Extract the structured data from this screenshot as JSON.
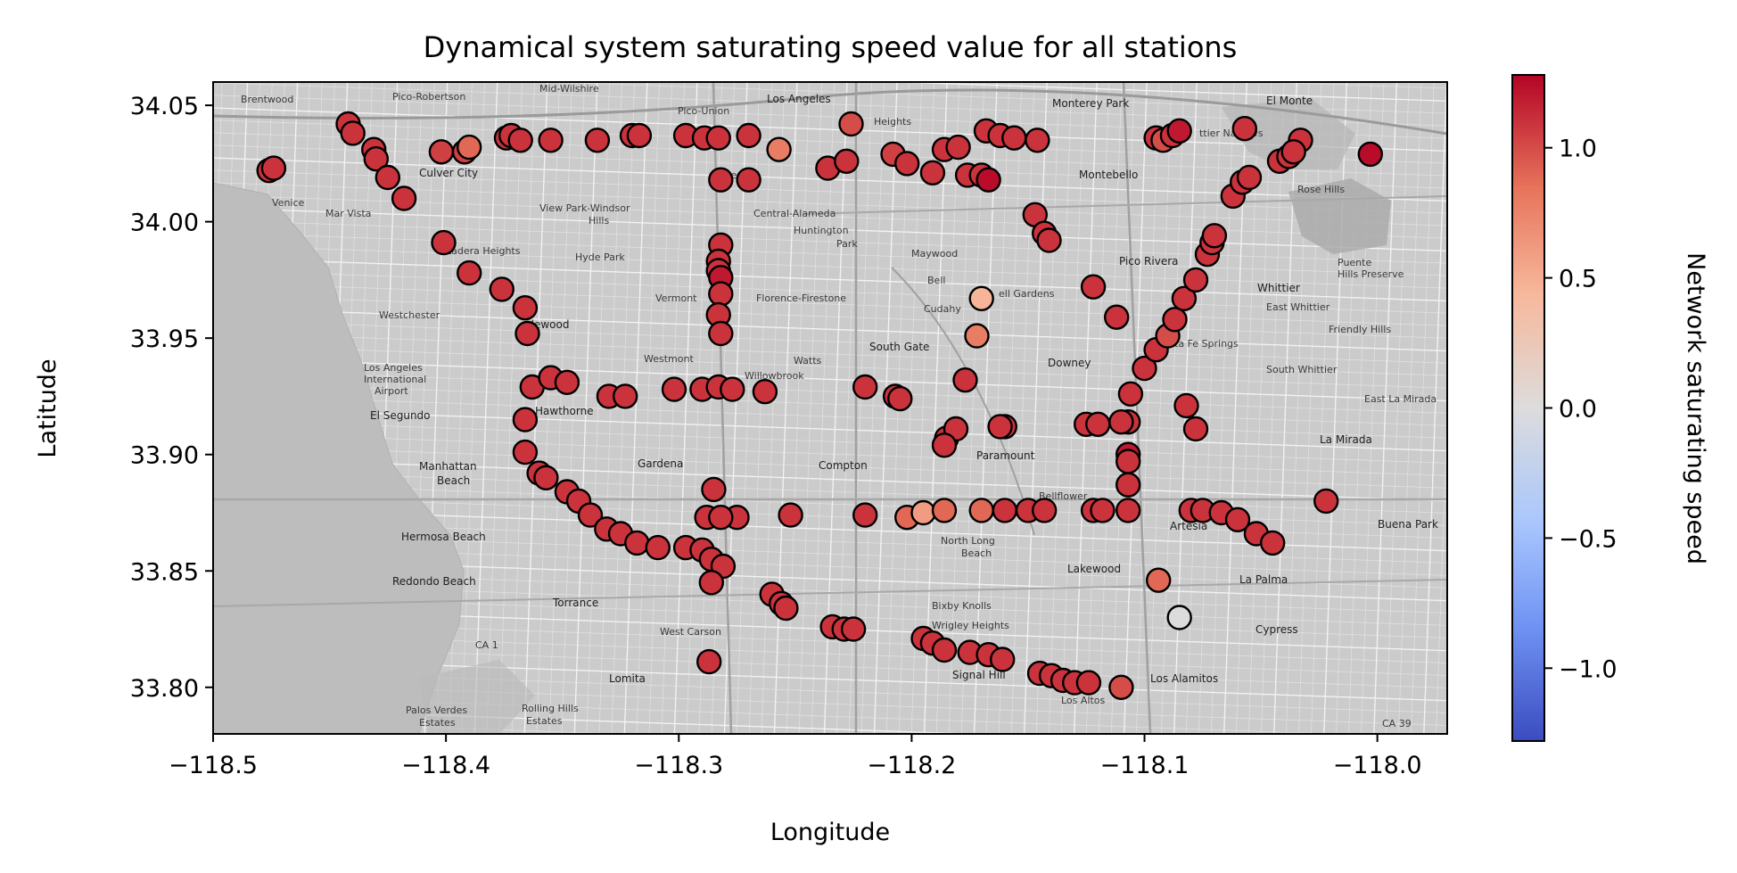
{
  "chart_data": {
    "type": "scatter",
    "title": "Dynamical system saturating speed value for all stations",
    "xlabel": "Longitude",
    "ylabel": "Latitude",
    "xlim": [
      -118.5,
      -117.97
    ],
    "ylim": [
      33.78,
      34.06
    ],
    "xticks": [
      -118.5,
      -118.4,
      -118.3,
      -118.2,
      -118.1,
      -118.0
    ],
    "xtick_labels": [
      "−118.5",
      "−118.4",
      "−118.3",
      "−118.2",
      "−118.1",
      "−118.0"
    ],
    "yticks": [
      33.8,
      33.85,
      33.9,
      33.95,
      34.0,
      34.05
    ],
    "ytick_labels": [
      "33.80",
      "33.85",
      "33.90",
      "33.95",
      "34.00",
      "34.05"
    ],
    "colorbar": {
      "label": "Network saturating speed",
      "colormap": "coolwarm",
      "vmin": -1.28,
      "vmax": 1.28,
      "ticks": [
        -1.0,
        -0.5,
        0.0,
        0.5,
        1.0
      ],
      "tick_labels": [
        "−1.0",
        "−0.5",
        "0.0",
        "0.5",
        "1.0"
      ],
      "colors": [
        "#3b4cc0",
        "#6f92f3",
        "#aac7fd",
        "#dddcdc",
        "#f7b89c",
        "#e7745b",
        "#b40426"
      ]
    },
    "background": "grayscale street map (Los Angeles area)",
    "points": [
      [
        -118.476,
        34.022,
        1.1
      ],
      [
        -118.474,
        34.023,
        1.1
      ],
      [
        -118.442,
        34.042,
        1.1
      ],
      [
        -118.44,
        34.038,
        1.1
      ],
      [
        -118.431,
        34.031,
        1.1
      ],
      [
        -118.43,
        34.027,
        1.1
      ],
      [
        -118.425,
        34.019,
        1.1
      ],
      [
        -118.418,
        34.01,
        1.1
      ],
      [
        -118.402,
        34.03,
        1.05
      ],
      [
        -118.392,
        34.03,
        1.05
      ],
      [
        -118.39,
        34.032,
        0.9
      ],
      [
        -118.374,
        34.036,
        1.1
      ],
      [
        -118.372,
        34.037,
        1.1
      ],
      [
        -118.368,
        34.035,
        1.1
      ],
      [
        -118.355,
        34.035,
        1.1
      ],
      [
        -118.335,
        34.035,
        1.1
      ],
      [
        -118.32,
        34.037,
        1.1
      ],
      [
        -118.317,
        34.037,
        1.1
      ],
      [
        -118.297,
        34.037,
        1.1
      ],
      [
        -118.289,
        34.036,
        1.1
      ],
      [
        -118.283,
        34.036,
        1.1
      ],
      [
        -118.27,
        34.037,
        1.1
      ],
      [
        -118.257,
        34.031,
        0.8
      ],
      [
        -118.226,
        34.042,
        1.0
      ],
      [
        -118.236,
        34.023,
        1.1
      ],
      [
        -118.228,
        34.026,
        1.1
      ],
      [
        -118.208,
        34.029,
        1.05
      ],
      [
        -118.202,
        34.025,
        1.1
      ],
      [
        -118.191,
        34.021,
        1.1
      ],
      [
        -118.186,
        34.031,
        1.1
      ],
      [
        -118.18,
        34.032,
        1.1
      ],
      [
        -118.176,
        34.02,
        1.1
      ],
      [
        -118.17,
        34.02,
        1.1
      ],
      [
        -118.167,
        34.018,
        1.25
      ],
      [
        -118.168,
        34.039,
        1.1
      ],
      [
        -118.162,
        34.037,
        1.1
      ],
      [
        -118.156,
        34.036,
        1.1
      ],
      [
        -118.146,
        34.035,
        1.1
      ],
      [
        -118.147,
        34.003,
        1.1
      ],
      [
        -118.143,
        33.995,
        1.1
      ],
      [
        -118.141,
        33.992,
        1.1
      ],
      [
        -118.095,
        34.036,
        1.1
      ],
      [
        -118.092,
        34.035,
        1.0
      ],
      [
        -118.088,
        34.037,
        1.1
      ],
      [
        -118.085,
        34.039,
        1.2
      ],
      [
        -118.057,
        34.04,
        1.1
      ],
      [
        -118.062,
        34.011,
        1.1
      ],
      [
        -118.058,
        34.017,
        1.1
      ],
      [
        -118.055,
        34.019,
        1.1
      ],
      [
        -118.042,
        34.026,
        1.1
      ],
      [
        -118.038,
        34.028,
        1.1
      ],
      [
        -118.033,
        34.035,
        1.1
      ],
      [
        -118.036,
        34.03,
        1.1
      ],
      [
        -118.003,
        34.029,
        1.25
      ],
      [
        -118.27,
        34.018,
        1.1
      ],
      [
        -118.282,
        34.018,
        1.1
      ],
      [
        -118.282,
        33.99,
        1.1
      ],
      [
        -118.283,
        33.983,
        1.1
      ],
      [
        -118.283,
        33.979,
        1.1
      ],
      [
        -118.282,
        33.976,
        1.2
      ],
      [
        -118.282,
        33.969,
        1.1
      ],
      [
        -118.283,
        33.96,
        1.1
      ],
      [
        -118.282,
        33.952,
        1.1
      ],
      [
        -118.401,
        33.991,
        1.1
      ],
      [
        -118.39,
        33.978,
        1.1
      ],
      [
        -118.376,
        33.971,
        1.1
      ],
      [
        -118.366,
        33.963,
        1.1
      ],
      [
        -118.365,
        33.952,
        1.1
      ],
      [
        -118.363,
        33.929,
        1.1
      ],
      [
        -118.355,
        33.933,
        1.1
      ],
      [
        -118.348,
        33.931,
        1.1
      ],
      [
        -118.33,
        33.925,
        1.1
      ],
      [
        -118.323,
        33.925,
        1.1
      ],
      [
        -118.302,
        33.928,
        1.1
      ],
      [
        -118.29,
        33.928,
        1.1
      ],
      [
        -118.283,
        33.929,
        1.1
      ],
      [
        -118.277,
        33.928,
        1.1
      ],
      [
        -118.263,
        33.927,
        1.1
      ],
      [
        -118.22,
        33.929,
        1.1
      ],
      [
        -118.207,
        33.925,
        1.1
      ],
      [
        -118.205,
        33.924,
        1.1
      ],
      [
        -118.177,
        33.932,
        1.1
      ],
      [
        -118.172,
        33.951,
        0.8
      ],
      [
        -118.17,
        33.967,
        0.45
      ],
      [
        -118.122,
        33.972,
        1.1
      ],
      [
        -118.112,
        33.959,
        1.1
      ],
      [
        -118.082,
        33.921,
        1.1
      ],
      [
        -118.1,
        33.937,
        1.1
      ],
      [
        -118.095,
        33.945,
        1.1
      ],
      [
        -118.09,
        33.951,
        1.0
      ],
      [
        -118.087,
        33.958,
        1.1
      ],
      [
        -118.083,
        33.967,
        1.1
      ],
      [
        -118.078,
        33.975,
        1.1
      ],
      [
        -118.073,
        33.986,
        1.1
      ],
      [
        -118.071,
        33.991,
        1.1
      ],
      [
        -118.07,
        33.994,
        1.1
      ],
      [
        -118.106,
        33.926,
        1.1
      ],
      [
        -118.107,
        33.914,
        1.1
      ],
      [
        -118.107,
        33.9,
        1.2
      ],
      [
        -118.107,
        33.897,
        1.1
      ],
      [
        -118.107,
        33.887,
        1.1
      ],
      [
        -118.107,
        33.876,
        1.1
      ],
      [
        -118.366,
        33.915,
        1.1
      ],
      [
        -118.366,
        33.901,
        1.1
      ],
      [
        -118.36,
        33.892,
        1.1
      ],
      [
        -118.357,
        33.89,
        1.1
      ],
      [
        -118.348,
        33.884,
        1.1
      ],
      [
        -118.343,
        33.88,
        1.1
      ],
      [
        -118.338,
        33.874,
        1.1
      ],
      [
        -118.331,
        33.868,
        1.1
      ],
      [
        -118.325,
        33.866,
        1.1
      ],
      [
        -118.318,
        33.862,
        1.1
      ],
      [
        -118.309,
        33.86,
        1.1
      ],
      [
        -118.297,
        33.86,
        1.1
      ],
      [
        -118.29,
        33.859,
        1.1
      ],
      [
        -118.286,
        33.855,
        1.1
      ],
      [
        -118.281,
        33.852,
        1.1
      ],
      [
        -118.286,
        33.845,
        1.1
      ],
      [
        -118.285,
        33.885,
        1.1
      ],
      [
        -118.288,
        33.873,
        1.1
      ],
      [
        -118.275,
        33.873,
        1.1
      ],
      [
        -118.282,
        33.873,
        1.1
      ],
      [
        -118.252,
        33.874,
        1.1
      ],
      [
        -118.22,
        33.874,
        1.1
      ],
      [
        -118.202,
        33.873,
        0.9
      ],
      [
        -118.195,
        33.875,
        0.6
      ],
      [
        -118.186,
        33.876,
        0.9
      ],
      [
        -118.17,
        33.876,
        0.9
      ],
      [
        -118.16,
        33.876,
        1.1
      ],
      [
        -118.15,
        33.876,
        1.1
      ],
      [
        -118.143,
        33.876,
        1.1
      ],
      [
        -118.122,
        33.876,
        1.1
      ],
      [
        -118.118,
        33.876,
        1.1
      ],
      [
        -118.08,
        33.876,
        1.1
      ],
      [
        -118.075,
        33.876,
        1.1
      ],
      [
        -118.067,
        33.875,
        1.1
      ],
      [
        -118.06,
        33.872,
        1.1
      ],
      [
        -118.052,
        33.866,
        1.1
      ],
      [
        -118.045,
        33.862,
        1.1
      ],
      [
        -118.022,
        33.88,
        1.1
      ],
      [
        -118.125,
        33.913,
        1.1
      ],
      [
        -118.12,
        33.913,
        1.1
      ],
      [
        -118.11,
        33.914,
        1.1
      ],
      [
        -118.16,
        33.912,
        1.1
      ],
      [
        -118.162,
        33.912,
        1.1
      ],
      [
        -118.185,
        33.907,
        1.1
      ],
      [
        -118.181,
        33.911,
        1.1
      ],
      [
        -118.186,
        33.904,
        1.1
      ],
      [
        -118.078,
        33.911,
        1.1
      ],
      [
        -118.094,
        33.846,
        0.9
      ],
      [
        -118.085,
        33.83,
        0.0
      ],
      [
        -118.26,
        33.84,
        1.1
      ],
      [
        -118.256,
        33.836,
        1.1
      ],
      [
        -118.254,
        33.834,
        1.1
      ],
      [
        -118.234,
        33.826,
        1.1
      ],
      [
        -118.229,
        33.825,
        1.1
      ],
      [
        -118.225,
        33.825,
        1.1
      ],
      [
        -118.195,
        33.821,
        1.1
      ],
      [
        -118.191,
        33.819,
        1.1
      ],
      [
        -118.186,
        33.816,
        1.1
      ],
      [
        -118.175,
        33.815,
        1.1
      ],
      [
        -118.167,
        33.814,
        1.1
      ],
      [
        -118.161,
        33.812,
        1.1
      ],
      [
        -118.145,
        33.806,
        1.1
      ],
      [
        -118.14,
        33.805,
        1.1
      ],
      [
        -118.135,
        33.803,
        1.1
      ],
      [
        -118.13,
        33.802,
        1.1
      ],
      [
        -118.124,
        33.802,
        1.1
      ],
      [
        -118.11,
        33.8,
        1.0
      ],
      [
        -118.287,
        33.811,
        1.1
      ]
    ]
  }
}
